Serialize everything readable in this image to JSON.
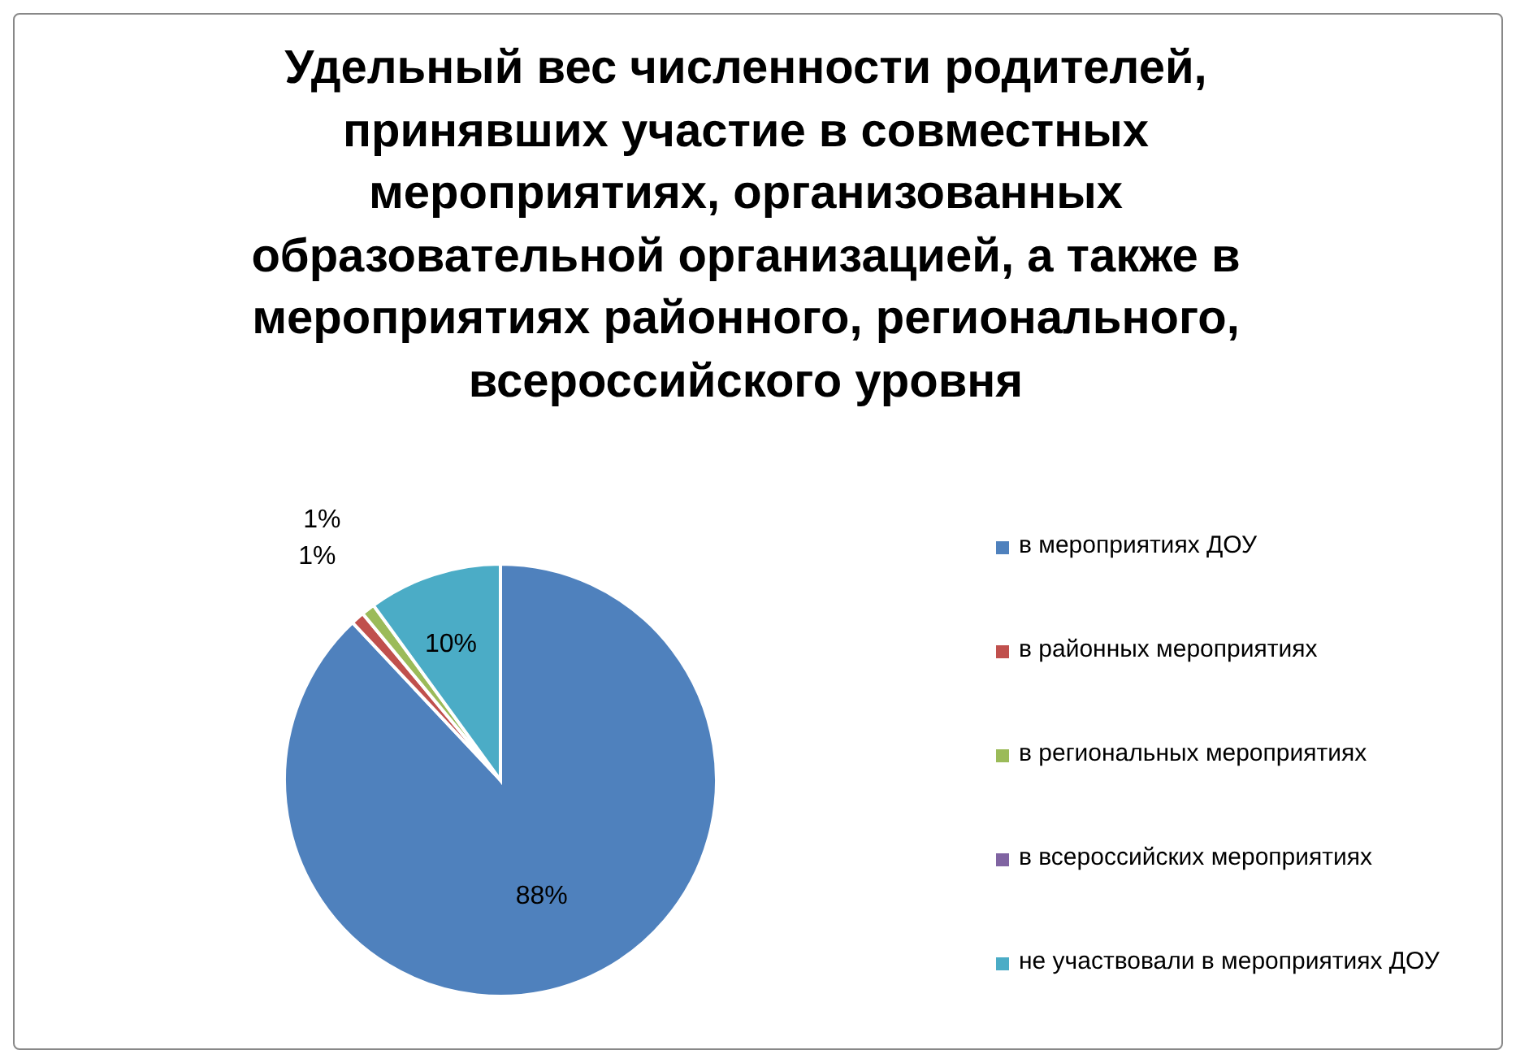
{
  "chart_data": {
    "type": "pie",
    "title": "Удельный вес численности родителей, принявших участие в совместных мероприятиях,  организованных образовательной организацией, а также в мероприятиях районного, регионального, всероссийского уровня",
    "categories": [
      "в мероприятиях ДОУ",
      "в районных мероприятиях",
      "в региональных мероприятиях",
      "в всероссийских мероприятиях",
      "не участвовали в мероприятиях ДОУ"
    ],
    "values": [
      88,
      1,
      1,
      0,
      10
    ],
    "value_labels": [
      "88%",
      "1%",
      "1%",
      null,
      "10%"
    ],
    "colors": [
      "#4f81bd",
      "#c0504d",
      "#9bbb59",
      "#8064a2",
      "#4bacc6"
    ],
    "legend": "right"
  }
}
